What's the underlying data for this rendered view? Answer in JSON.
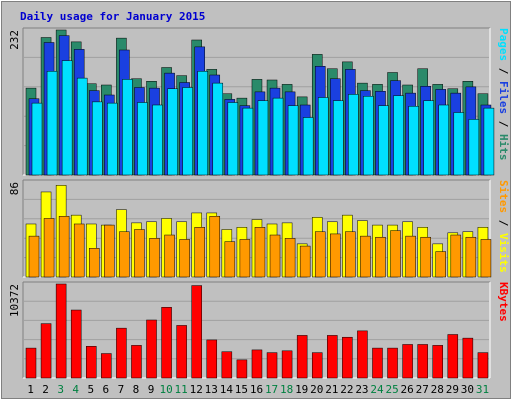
{
  "chart_data": {
    "type": "bar",
    "title": "Daily usage for January 2015",
    "days": [
      "1",
      "2",
      "3",
      "4",
      "5",
      "6",
      "7",
      "8",
      "9",
      "10",
      "11",
      "12",
      "13",
      "14",
      "15",
      "16",
      "17",
      "18",
      "19",
      "20",
      "21",
      "22",
      "23",
      "24",
      "25",
      "26",
      "27",
      "28",
      "29",
      "30",
      "31"
    ],
    "weekend_days": [
      "3",
      "4",
      "10",
      "11",
      "17",
      "18",
      "24",
      "25",
      "31"
    ],
    "panels": [
      {
        "ylabel_max": "232",
        "ymax": 232,
        "side_labels": [
          "Pages",
          "Files",
          "Hits"
        ],
        "side_separator": " / ",
        "series": [
          {
            "name": "Hits",
            "values": [
              139,
              220,
              232,
              213,
              146,
              144,
              219,
              154,
              150,
              172,
              159,
              216,
              169,
              130,
              123,
              153,
              152,
              145,
              125,
              193,
              170,
              181,
              147,
              145,
              164,
              144,
              170,
              145,
              138,
              150,
              130
            ],
            "color": "#2a8a6a"
          },
          {
            "name": "Files",
            "values": [
              122,
              212,
              223,
              201,
              135,
              128,
              200,
              140,
              139,
              163,
              148,
              205,
              160,
              121,
              111,
              133,
              139,
              133,
              112,
              174,
              154,
              169,
              135,
              134,
              151,
              131,
              142,
              137,
              131,
              141,
              112
            ],
            "color": "#1a40e0"
          },
          {
            "name": "Pages",
            "values": [
              115,
              166,
              183,
              155,
              117,
              115,
              153,
              116,
              112,
              138,
              140,
              166,
              147,
              116,
              107,
              119,
              123,
              111,
              92,
              124,
              119,
              129,
              126,
              111,
              127,
              110,
              119,
              112,
              100,
              89,
              107
            ],
            "color": "#00e0ff"
          }
        ]
      },
      {
        "ylabel_max": "86",
        "ymax": 86,
        "side_labels": [
          "Sites",
          "Visits"
        ],
        "side_separator": " / ",
        "series": [
          {
            "name": "Visits",
            "values": [
              48,
              77,
              83,
              56,
              48,
              47,
              61,
              49,
              50,
              53,
              50,
              58,
              58,
              43,
              45,
              52,
              48,
              49,
              30,
              54,
              50,
              56,
              51,
              47,
              47,
              50,
              45,
              30,
              40,
              41,
              45
            ],
            "color": "#ffff00"
          },
          {
            "name": "Sites",
            "values": [
              37,
              53,
              55,
              48,
              26,
              47,
              41,
              43,
              35,
              38,
              34,
              45,
              55,
              32,
              34,
              45,
              38,
              35,
              28,
              41,
              39,
              41,
              37,
              36,
              42,
              37,
              36,
              23,
              38,
              36,
              34
            ],
            "color": "#ff9900"
          }
        ]
      },
      {
        "ylabel_max": "10372",
        "ymax": 10372,
        "side_labels": [
          "KBytes"
        ],
        "side_separator": "",
        "series": [
          {
            "name": "KBytes",
            "values": [
              3300,
              6000,
              10372,
              7500,
              3500,
              2700,
              5500,
              3600,
              6400,
              7800,
              5800,
              10200,
              4200,
              2900,
              2000,
              3100,
              2800,
              3000,
              4700,
              2800,
              4700,
              4500,
              5200,
              3300,
              3300,
              3700,
              3700,
              3600,
              4800,
              4400,
              2800
            ],
            "color": "#ff0000"
          }
        ]
      }
    ]
  },
  "colors": {
    "background": "#c0c0c0",
    "plot_bg": "#c0c0c0",
    "gridline": "#a0a0a0",
    "title": "#0000d0",
    "weekday_label": "#000000",
    "weekend_label": "#008040"
  }
}
